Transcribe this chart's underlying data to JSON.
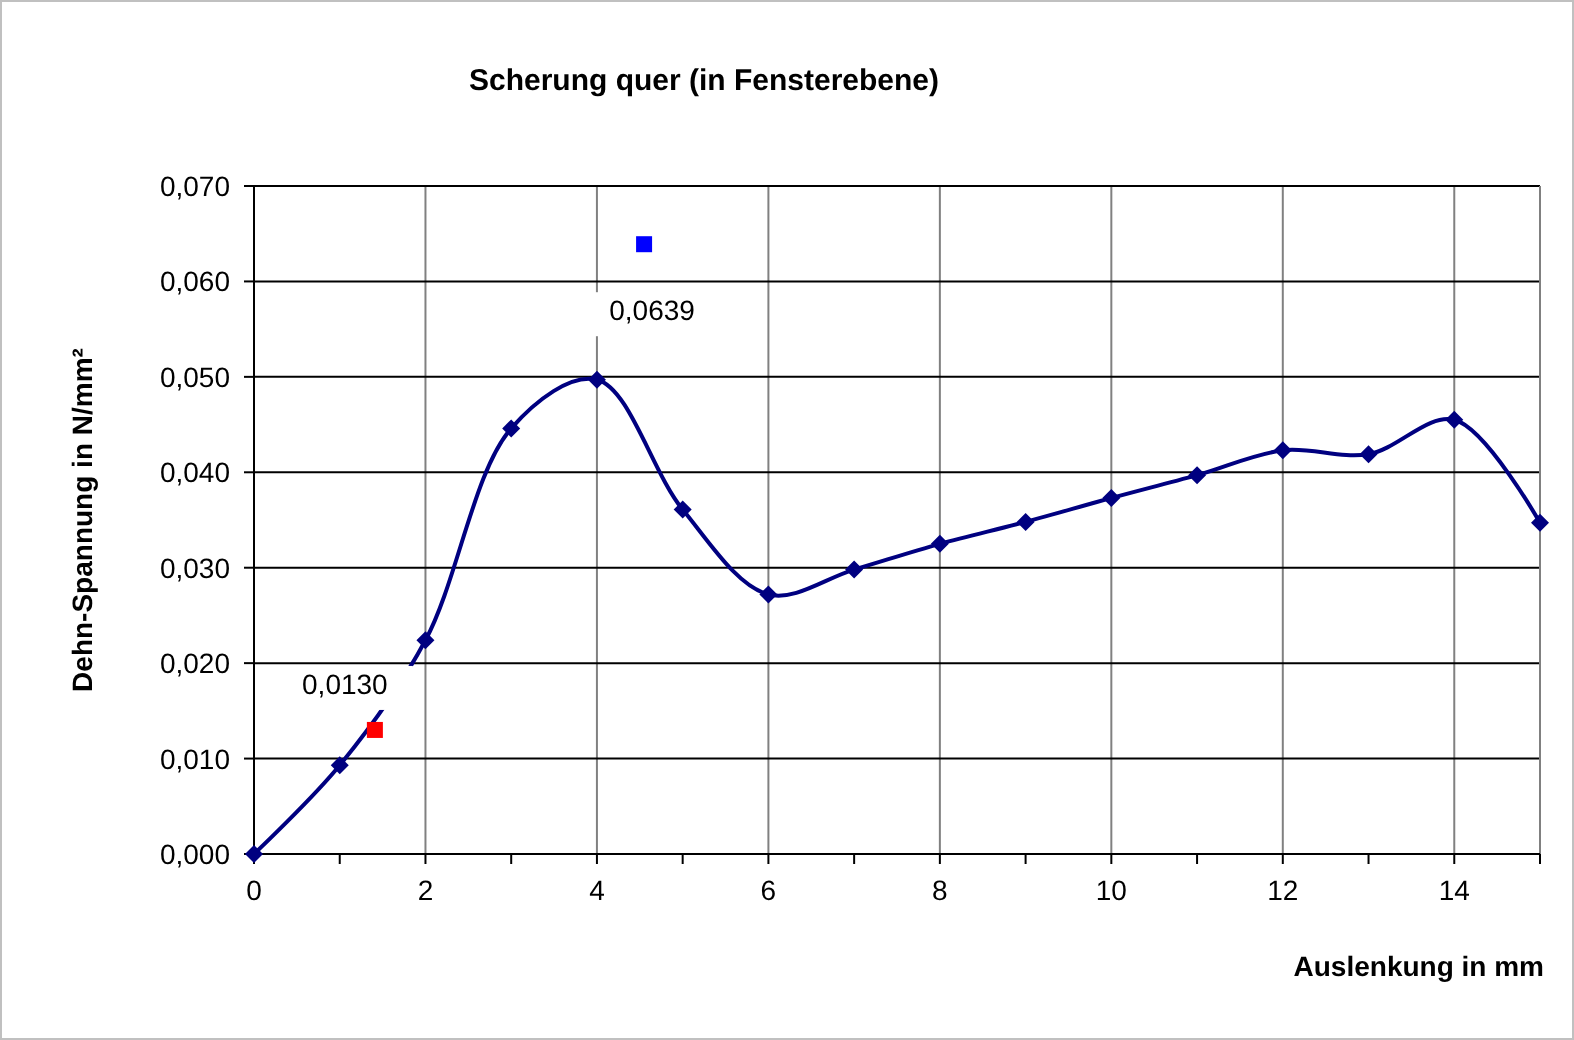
{
  "chart_data": {
    "type": "line",
    "title": "Scherung quer (in Fensterebene)",
    "xlabel": "Auslenkung in mm",
    "ylabel": "Dehn-Spannung in N/mm²",
    "xlim": [
      0,
      15
    ],
    "xticks": [
      0,
      {
        "value": 1,
        "label": null
      },
      2,
      {
        "value": 3,
        "label": null
      },
      4,
      {
        "value": 5,
        "label": null
      },
      6,
      {
        "value": 7,
        "label": null
      },
      8,
      {
        "value": 9,
        "label": null
      },
      10,
      {
        "value": 11,
        "label": null
      },
      12,
      {
        "value": 13,
        "label": null
      },
      14,
      {
        "value": 15,
        "label": null
      }
    ],
    "ylim": [
      0,
      0.07
    ],
    "yticks": [
      {
        "value": 0,
        "label": "0,000"
      },
      {
        "value": 0.01,
        "label": "0,010"
      },
      {
        "value": 0.02,
        "label": "0,020"
      },
      {
        "value": 0.03,
        "label": "0,030"
      },
      {
        "value": 0.04,
        "label": "0,040"
      },
      {
        "value": 0.05,
        "label": "0,050"
      },
      {
        "value": 0.06,
        "label": "0,060"
      },
      {
        "value": 0.07,
        "label": "0,070"
      }
    ],
    "grid": true,
    "series": [
      {
        "type": "line",
        "color": "#000080",
        "marker": "diamond",
        "line_style": "solid",
        "x": [
          0,
          1,
          2,
          3,
          4,
          5,
          6,
          7,
          8,
          9,
          10,
          11,
          12,
          13,
          14,
          15
        ],
        "values": [
          0,
          0.0093,
          0.0224,
          0.0446,
          0.0497,
          0.0361,
          0.0272,
          0.0298,
          0.0325,
          0.0348,
          0.0373,
          0.0397,
          0.0423,
          0.0419,
          0.0455,
          0.0347
        ]
      },
      {
        "type": "scatter",
        "color": "#ff0000",
        "marker": "square",
        "x": [
          1.41
        ],
        "values": [
          0.013
        ],
        "value_labels": [
          "0,0130"
        ]
      },
      {
        "type": "scatter",
        "color": "#0000ff",
        "marker": "square",
        "x": [
          4.55
        ],
        "values": [
          0.0639
        ],
        "value_labels": [
          "0,0639"
        ]
      }
    ]
  }
}
